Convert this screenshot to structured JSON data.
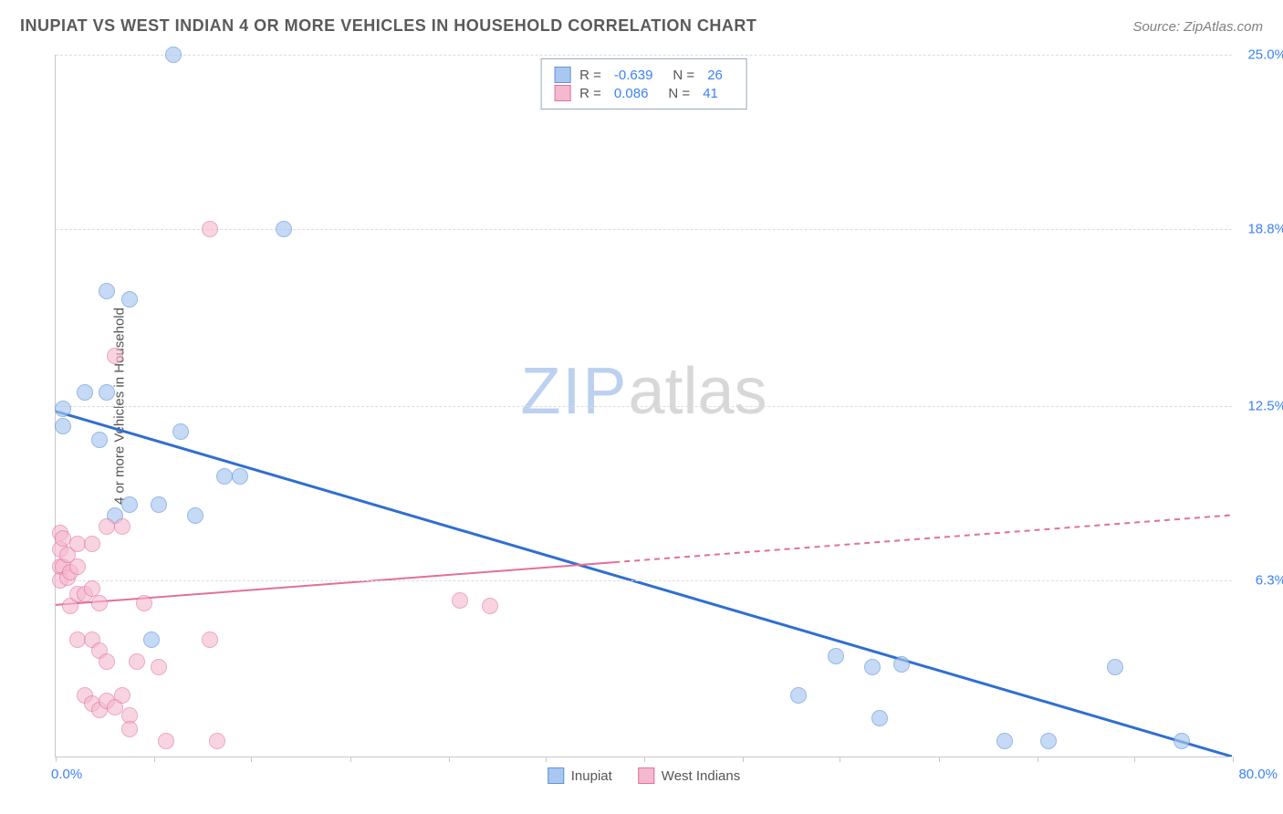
{
  "header": {
    "title": "INUPIAT VS WEST INDIAN 4 OR MORE VEHICLES IN HOUSEHOLD CORRELATION CHART",
    "source_label": "Source: ZipAtlas.com"
  },
  "watermark": {
    "zip": "ZIP",
    "atlas": "atlas"
  },
  "chart": {
    "type": "scatter",
    "background_color": "#ffffff",
    "grid_color": "#dcdcdc",
    "axis_color": "#c8c8c8",
    "xlim": [
      0,
      80
    ],
    "ylim": [
      0,
      25
    ],
    "x_tick_positions": [
      0,
      6.7,
      13.3,
      20,
      26.7,
      33.3,
      40,
      46.7,
      53.3,
      60,
      66.7,
      73.3,
      80
    ],
    "x_labels": {
      "min": "0.0%",
      "max": "80.0%"
    },
    "y_ticks": [
      {
        "value": 6.3,
        "label": "6.3%"
      },
      {
        "value": 12.5,
        "label": "12.5%"
      },
      {
        "value": 18.8,
        "label": "18.8%"
      },
      {
        "value": 25.0,
        "label": "25.0%"
      }
    ],
    "y_axis_title": "4 or more Vehicles in Household",
    "point_radius": 9,
    "point_border_width": 1.5,
    "series": [
      {
        "name": "Inupiat",
        "fill_color": "#a9c7f0",
        "border_color": "#5c94da",
        "fill_opacity": 0.65,
        "r_value": "-0.639",
        "n_value": "26",
        "trend": {
          "x1": 0,
          "y1": 12.3,
          "x2": 80,
          "y2": 0.0,
          "color": "#2f6fd1",
          "width": 3,
          "dash_from_x": null
        },
        "points": [
          {
            "x": 0.5,
            "y": 12.4
          },
          {
            "x": 0.5,
            "y": 11.8
          },
          {
            "x": 2.0,
            "y": 13.0
          },
          {
            "x": 3.5,
            "y": 13.0
          },
          {
            "x": 3.5,
            "y": 16.6
          },
          {
            "x": 5.0,
            "y": 16.3
          },
          {
            "x": 3.0,
            "y": 11.3
          },
          {
            "x": 8.0,
            "y": 25.0
          },
          {
            "x": 15.5,
            "y": 18.8
          },
          {
            "x": 8.5,
            "y": 11.6
          },
          {
            "x": 4.0,
            "y": 8.6
          },
          {
            "x": 5.0,
            "y": 9.0
          },
          {
            "x": 7.0,
            "y": 9.0
          },
          {
            "x": 9.5,
            "y": 8.6
          },
          {
            "x": 11.5,
            "y": 10.0
          },
          {
            "x": 12.5,
            "y": 10.0
          },
          {
            "x": 6.5,
            "y": 4.2
          },
          {
            "x": 53.0,
            "y": 3.6
          },
          {
            "x": 55.5,
            "y": 3.2
          },
          {
            "x": 57.5,
            "y": 3.3
          },
          {
            "x": 50.5,
            "y": 2.2
          },
          {
            "x": 56.0,
            "y": 1.4
          },
          {
            "x": 64.5,
            "y": 0.6
          },
          {
            "x": 67.5,
            "y": 0.6
          },
          {
            "x": 72.0,
            "y": 3.2
          },
          {
            "x": 76.5,
            "y": 0.6
          }
        ]
      },
      {
        "name": "West Indians",
        "fill_color": "#f5b9cf",
        "border_color": "#e36f9a",
        "fill_opacity": 0.6,
        "r_value": "0.086",
        "n_value": "41",
        "trend": {
          "x1": 0,
          "y1": 5.4,
          "x2": 80,
          "y2": 8.6,
          "color": "#e36f9a",
          "width": 2,
          "dash_from_x": 38
        },
        "points": [
          {
            "x": 0.3,
            "y": 6.8
          },
          {
            "x": 0.5,
            "y": 6.8
          },
          {
            "x": 0.3,
            "y": 7.4
          },
          {
            "x": 0.8,
            "y": 7.2
          },
          {
            "x": 0.3,
            "y": 6.3
          },
          {
            "x": 0.8,
            "y": 6.4
          },
          {
            "x": 1.0,
            "y": 6.6
          },
          {
            "x": 1.5,
            "y": 6.8
          },
          {
            "x": 1.5,
            "y": 7.6
          },
          {
            "x": 2.5,
            "y": 7.6
          },
          {
            "x": 3.5,
            "y": 8.2
          },
          {
            "x": 4.5,
            "y": 8.2
          },
          {
            "x": 1.0,
            "y": 5.4
          },
          {
            "x": 1.5,
            "y": 5.8
          },
          {
            "x": 2.0,
            "y": 5.8
          },
          {
            "x": 2.5,
            "y": 6.0
          },
          {
            "x": 3.0,
            "y": 5.5
          },
          {
            "x": 6.0,
            "y": 5.5
          },
          {
            "x": 1.5,
            "y": 4.2
          },
          {
            "x": 2.5,
            "y": 4.2
          },
          {
            "x": 3.0,
            "y": 3.8
          },
          {
            "x": 3.5,
            "y": 3.4
          },
          {
            "x": 5.5,
            "y": 3.4
          },
          {
            "x": 7.0,
            "y": 3.2
          },
          {
            "x": 2.0,
            "y": 2.2
          },
          {
            "x": 2.5,
            "y": 1.9
          },
          {
            "x": 3.0,
            "y": 1.7
          },
          {
            "x": 3.5,
            "y": 2.0
          },
          {
            "x": 4.0,
            "y": 1.8
          },
          {
            "x": 4.5,
            "y": 2.2
          },
          {
            "x": 5.0,
            "y": 1.5
          },
          {
            "x": 5.0,
            "y": 1.0
          },
          {
            "x": 7.5,
            "y": 0.6
          },
          {
            "x": 11.0,
            "y": 0.6
          },
          {
            "x": 10.5,
            "y": 4.2
          },
          {
            "x": 10.5,
            "y": 18.8
          },
          {
            "x": 4.0,
            "y": 14.3
          },
          {
            "x": 27.5,
            "y": 5.6
          },
          {
            "x": 29.5,
            "y": 5.4
          },
          {
            "x": 0.3,
            "y": 8.0
          },
          {
            "x": 0.5,
            "y": 7.8
          }
        ]
      }
    ]
  },
  "legend_top": {
    "r_label": "R =",
    "n_label": "N ="
  },
  "legend_bottom": {
    "items": [
      "Inupiat",
      "West Indians"
    ]
  }
}
